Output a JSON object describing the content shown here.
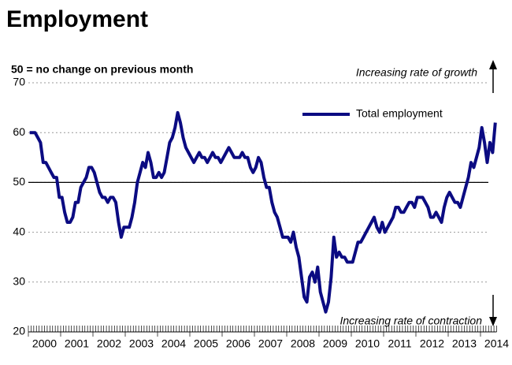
{
  "chart_data": {
    "type": "line",
    "title": "Employment",
    "subtitle": "50 = no change on previous month",
    "annotations": [
      "Increasing rate of growth",
      "Increasing rate of contraction"
    ],
    "categories": [
      "2000",
      null,
      null,
      null,
      null,
      null,
      null,
      null,
      null,
      null,
      null,
      null,
      "2001",
      null,
      null,
      null,
      null,
      null,
      null,
      null,
      null,
      null,
      null,
      null,
      "2002",
      null,
      null,
      null,
      null,
      null,
      null,
      null,
      null,
      null,
      null,
      null,
      "2003",
      null,
      null,
      null,
      null,
      null,
      null,
      null,
      null,
      null,
      null,
      null,
      "2004",
      null,
      null,
      null,
      null,
      null,
      null,
      null,
      null,
      null,
      null,
      null,
      "2005",
      null,
      null,
      null,
      null,
      null,
      null,
      null,
      null,
      null,
      null,
      null,
      "2006",
      null,
      null,
      null,
      null,
      null,
      null,
      null,
      null,
      null,
      null,
      null,
      "2007",
      null,
      null,
      null,
      null,
      null,
      null,
      null,
      null,
      null,
      null,
      null,
      "2008",
      null,
      null,
      null,
      null,
      null,
      null,
      null,
      null,
      null,
      null,
      null,
      "2009",
      null,
      null,
      null,
      null,
      null,
      null,
      null,
      null,
      null,
      null,
      null,
      "2010",
      null,
      null,
      null,
      null,
      null,
      null,
      null,
      null,
      null,
      null,
      null,
      "2011",
      null,
      null,
      null,
      null,
      null,
      null,
      null,
      null,
      null,
      null,
      null,
      "2012",
      null,
      null,
      null,
      null,
      null,
      null,
      null,
      null,
      null,
      null,
      null,
      "2013",
      null,
      null,
      null,
      null,
      null,
      null,
      null,
      null,
      null,
      null,
      null,
      "2014",
      null,
      null,
      null,
      null,
      null
    ],
    "series": [
      {
        "name": "Total employment",
        "color": "#0b0b82",
        "values": [
          60,
          60,
          60,
          59,
          58,
          54,
          54,
          53,
          52,
          51,
          51,
          47,
          47,
          44,
          42,
          42,
          43,
          46,
          46,
          49,
          50,
          51,
          53,
          53,
          52,
          50,
          48,
          47,
          47,
          46,
          47,
          47,
          46,
          42,
          39,
          41,
          41,
          41,
          43,
          46,
          50,
          52,
          54,
          53,
          56,
          54,
          51,
          51,
          52,
          51,
          52,
          55,
          58,
          59,
          61,
          64,
          62,
          59,
          57,
          56,
          55,
          54,
          55,
          56,
          55,
          55,
          54,
          55,
          56,
          55,
          55,
          54,
          55,
          56,
          57,
          56,
          55,
          55,
          55,
          56,
          55,
          55,
          53,
          52,
          53,
          55,
          54,
          51,
          49,
          49,
          46,
          44,
          43,
          41,
          39,
          39,
          39,
          38,
          40,
          37,
          35,
          31,
          27,
          26,
          31,
          32,
          30,
          33,
          28,
          26,
          24,
          26,
          31,
          39,
          35,
          36,
          35,
          35,
          34,
          34,
          34,
          36,
          38,
          38,
          39,
          40,
          41,
          42,
          43,
          41,
          40,
          42,
          40,
          41,
          42,
          43,
          45,
          45,
          44,
          44,
          45,
          46,
          46,
          45,
          47,
          47,
          47,
          46,
          45,
          43,
          43,
          44,
          43,
          42,
          45,
          47,
          48,
          47,
          46,
          46,
          45,
          47,
          49,
          51,
          54,
          53,
          55,
          57,
          61,
          58,
          54,
          58,
          56,
          62
        ]
      }
    ],
    "ylim": [
      20,
      70
    ],
    "yticks": [
      20,
      30,
      40,
      50,
      60,
      70
    ],
    "reference_line": 50,
    "grid": true,
    "legend": "upper right"
  }
}
